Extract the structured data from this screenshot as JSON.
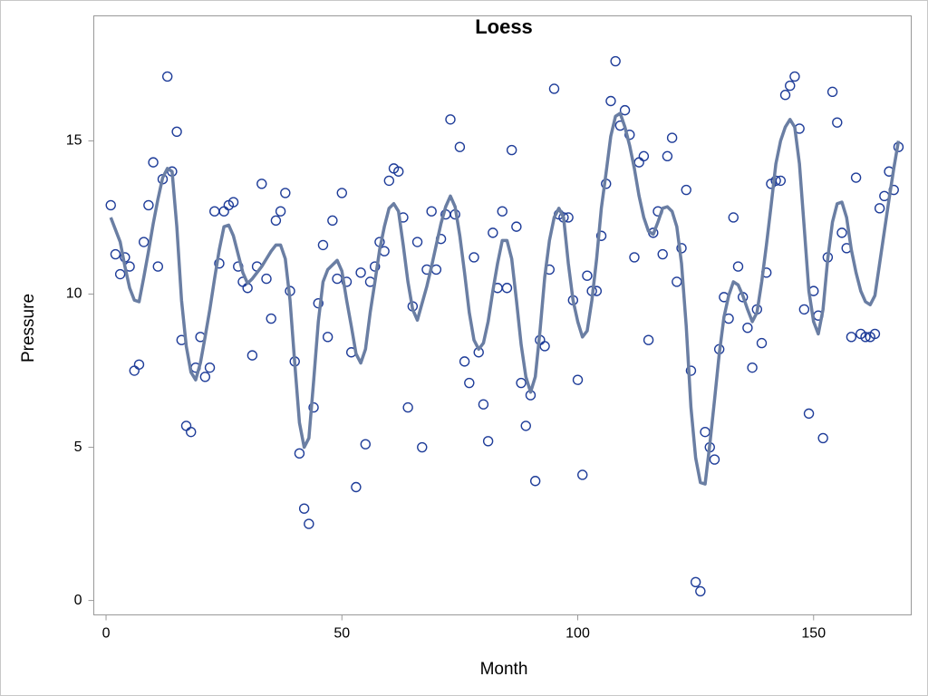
{
  "chart_data": {
    "type": "scatter",
    "title": "Loess",
    "x_label": "Month",
    "y_label": "Pressure",
    "x": [
      1,
      2,
      3,
      4,
      5,
      6,
      7,
      8,
      9,
      10,
      11,
      12,
      13,
      14,
      15,
      16,
      17,
      18,
      19,
      20,
      21,
      22,
      23,
      24,
      25,
      26,
      27,
      28,
      29,
      30,
      31,
      32,
      33,
      34,
      35,
      36,
      37,
      38,
      39,
      40,
      41,
      42,
      43,
      44,
      45,
      46,
      47,
      48,
      49,
      50,
      51,
      52,
      53,
      54,
      55,
      56,
      57,
      58,
      59,
      60,
      61,
      62,
      63,
      64,
      65,
      66,
      67,
      68,
      69,
      70,
      71,
      72,
      73,
      74,
      75,
      76,
      77,
      78,
      79,
      80,
      81,
      82,
      83,
      84,
      85,
      86,
      87,
      88,
      89,
      90,
      91,
      92,
      93,
      94,
      95,
      96,
      97,
      98,
      99,
      100,
      101,
      102,
      103,
      104,
      105,
      106,
      107,
      108,
      109,
      110,
      111,
      112,
      113,
      114,
      115,
      116,
      117,
      118,
      119,
      120,
      121,
      122,
      123,
      124,
      125,
      126,
      127,
      128,
      129,
      130,
      131,
      132,
      133,
      134,
      135,
      136,
      137,
      138,
      139,
      140,
      141,
      142,
      143,
      144,
      145,
      146,
      147,
      148,
      149,
      150,
      151,
      152,
      153,
      154,
      155,
      156,
      157,
      158,
      159,
      160,
      161,
      162,
      163,
      164,
      165,
      166,
      167,
      168
    ],
    "series": [
      {
        "type": "scatter",
        "color": "#1f3d99",
        "values": [
          12.9,
          11.3,
          10.65,
          11.2,
          10.9,
          7.5,
          7.7,
          11.7,
          12.9,
          14.3,
          10.9,
          13.75,
          17.1,
          14.0,
          15.3,
          8.5,
          5.7,
          5.5,
          7.6,
          8.6,
          7.3,
          7.6,
          12.7,
          11.0,
          12.7,
          12.9,
          13.0,
          10.9,
          10.4,
          10.2,
          8.0,
          10.9,
          13.6,
          10.5,
          9.2,
          12.4,
          12.7,
          13.3,
          10.1,
          7.8,
          4.8,
          3.0,
          2.5,
          6.3,
          9.7,
          11.6,
          8.6,
          12.4,
          10.5,
          13.3,
          10.4,
          8.1,
          3.7,
          10.7,
          5.1,
          10.4,
          10.9,
          11.7,
          11.4,
          13.7,
          14.1,
          14.0,
          12.5,
          6.3,
          9.6,
          11.7,
          5.0,
          10.8,
          12.7,
          10.8,
          11.8,
          12.6,
          15.7,
          12.6,
          14.8,
          7.8,
          7.1,
          11.2,
          8.1,
          6.4,
          5.2,
          12.0,
          10.2,
          12.7,
          10.2,
          14.7,
          12.2,
          7.1,
          5.7,
          6.7,
          3.9,
          8.5,
          8.3,
          10.8,
          16.7,
          12.6,
          12.5,
          12.5,
          9.8,
          7.2,
          4.1,
          10.6,
          10.1,
          10.1,
          11.9,
          13.6,
          16.3,
          17.6,
          15.5,
          16.0,
          15.2,
          11.2,
          14.3,
          14.5,
          8.5,
          12.0,
          12.7,
          11.3,
          14.5,
          15.1,
          10.4,
          11.5,
          13.4,
          7.5,
          0.6,
          0.3,
          5.5,
          5.0,
          4.6,
          8.2,
          9.9,
          9.2,
          12.5,
          10.9,
          9.9,
          8.9,
          7.6,
          9.5,
          8.4,
          10.7,
          13.6,
          13.7,
          13.7,
          16.5,
          16.8,
          17.1,
          15.4,
          9.5,
          6.1,
          10.1,
          9.3,
          5.3,
          11.2,
          16.6,
          15.6,
          12.0,
          11.5,
          8.6,
          13.8,
          8.7,
          8.6,
          8.6,
          8.7,
          12.8,
          13.2,
          14.0,
          13.4,
          14.8
        ]
      },
      {
        "type": "line",
        "color": "#6a7ea3",
        "values": [
          12.5,
          12.1,
          11.7,
          10.9,
          10.2,
          9.8,
          9.75,
          10.55,
          11.4,
          12.3,
          13.1,
          13.8,
          14.1,
          14.0,
          12.2,
          9.8,
          8.3,
          7.45,
          7.2,
          7.75,
          8.6,
          9.5,
          10.5,
          11.45,
          12.2,
          12.25,
          11.9,
          11.3,
          10.7,
          10.35,
          10.5,
          10.7,
          10.9,
          11.15,
          11.4,
          11.6,
          11.6,
          11.15,
          9.8,
          7.75,
          5.8,
          5.0,
          5.3,
          7.15,
          9.1,
          10.4,
          10.8,
          10.95,
          11.1,
          10.75,
          9.8,
          8.95,
          8.05,
          7.75,
          8.2,
          9.4,
          10.4,
          11.45,
          12.2,
          12.8,
          12.95,
          12.7,
          11.6,
          10.4,
          9.5,
          9.15,
          9.7,
          10.25,
          10.9,
          11.6,
          12.3,
          12.85,
          13.2,
          12.85,
          11.9,
          10.7,
          9.4,
          8.5,
          8.2,
          8.4,
          9.1,
          10.1,
          11.0,
          11.75,
          11.75,
          11.15,
          9.8,
          8.35,
          7.3,
          6.8,
          7.3,
          8.8,
          10.55,
          11.75,
          12.5,
          12.8,
          12.5,
          11.0,
          9.8,
          9.1,
          8.6,
          8.8,
          9.8,
          11.15,
          12.8,
          13.95,
          15.15,
          15.8,
          15.9,
          15.45,
          14.85,
          14.1,
          13.2,
          12.5,
          12.05,
          11.95,
          12.35,
          12.8,
          12.85,
          12.7,
          12.2,
          11.0,
          8.95,
          6.3,
          4.65,
          3.85,
          3.8,
          5.1,
          6.55,
          8.05,
          9.25,
          9.95,
          10.4,
          10.3,
          9.95,
          9.5,
          9.1,
          9.4,
          10.4,
          11.6,
          12.9,
          14.25,
          15.0,
          15.45,
          15.7,
          15.45,
          14.25,
          12.2,
          10.1,
          9.1,
          8.7,
          9.5,
          11.15,
          12.35,
          12.95,
          13.0,
          12.5,
          11.45,
          10.7,
          10.1,
          9.75,
          9.65,
          9.95,
          11.0,
          12.05,
          13.1,
          14.1,
          15.0
        ]
      }
    ],
    "xlim": [
      -2.6,
      170.7
    ],
    "xticks": [
      0,
      50,
      100,
      150
    ],
    "ylim": [
      -0.47,
      19.08
    ],
    "yticks": [
      0,
      5,
      10,
      15
    ]
  }
}
